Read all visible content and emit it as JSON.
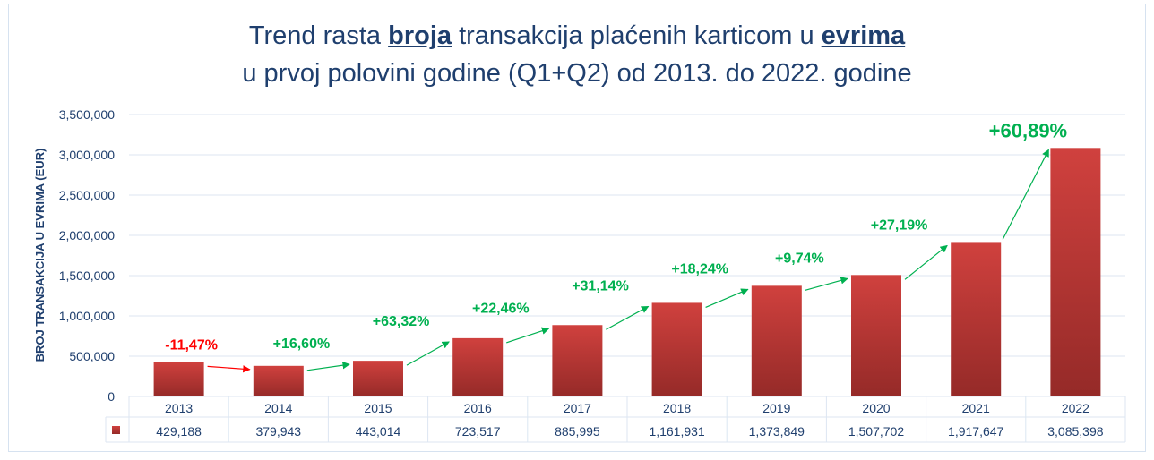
{
  "chart_data": {
    "type": "bar",
    "title_line1": {
      "pre": "Trend rasta ",
      "b1": "broja",
      "mid": " transakcija plaćenih karticom u ",
      "b2": "evrima"
    },
    "title_line2": "u prvoj polovini godine (Q1+Q2) od 2013. do 2022. godine",
    "ylabel": "BROJ TRANSAKCIJA U EVRIMA (EUR)",
    "xlabel": "",
    "ylim": [
      0,
      3500000
    ],
    "yticks": [
      0,
      500000,
      1000000,
      1500000,
      2000000,
      2500000,
      3000000,
      3500000
    ],
    "ytick_labels": [
      "0",
      "500,000",
      "1,000,000",
      "1,500,000",
      "2,000,000",
      "2,500,000",
      "3,000,000",
      "3,500,000"
    ],
    "categories": [
      "2013",
      "2014",
      "2015",
      "2016",
      "2017",
      "2018",
      "2019",
      "2020",
      "2021",
      "2022"
    ],
    "values": [
      429188,
      379943,
      443014,
      723517,
      885995,
      1161931,
      1373849,
      1507702,
      1917647,
      3085398
    ],
    "value_labels": [
      "429,188",
      "379,943",
      "443,014",
      "723,517",
      "885,995",
      "1,161,931",
      "1,373,849",
      "1,507,702",
      "1,917,647",
      "3,085,398"
    ],
    "growth_labels": [
      "-11,47%",
      "+16,60%",
      "+63,32%",
      "+22,46%",
      "+31,14%",
      "+18,24%",
      "+9,74%",
      "+27,19%",
      "+60,89%"
    ],
    "grid": true,
    "legend": "data-table",
    "colors": {
      "bar_top": "#d0413e",
      "bar_bottom": "#952a28",
      "positive": "#00b050",
      "negative": "#ff0000",
      "text": "#1f3f6e",
      "grid": "#dce6f2"
    }
  }
}
